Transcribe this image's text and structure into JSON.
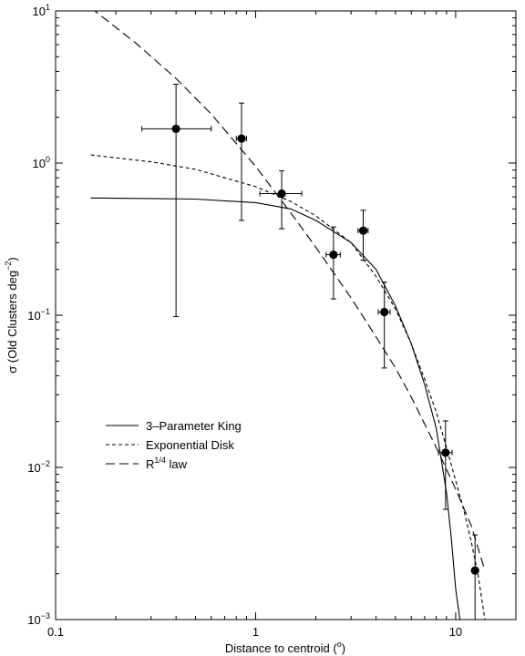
{
  "chart_data": {
    "type": "scatter",
    "xscale": "log",
    "yscale": "log",
    "xlim": [
      0.1,
      20
    ],
    "ylim": [
      0.001,
      10
    ],
    "xlabel_parts": [
      "Distance to  centroid  (",
      "o",
      ")"
    ],
    "ylabel_parts": [
      "σ (Old Clusters deg",
      "−2",
      ")"
    ],
    "x_ticks": [
      {
        "value": 0.1,
        "label": "0.1"
      },
      {
        "value": 1,
        "label": "1"
      },
      {
        "value": 10,
        "label": "10"
      }
    ],
    "y_ticks": [
      {
        "value": 0.001,
        "base": "10",
        "exp": "−3"
      },
      {
        "value": 0.01,
        "base": "10",
        "exp": "−2"
      },
      {
        "value": 0.1,
        "base": "10",
        "exp": "−1"
      },
      {
        "value": 1,
        "base": "10",
        "exp": "0"
      },
      {
        "value": 10,
        "base": "10",
        "exp": "1"
      }
    ],
    "grid": false,
    "legend_position": "lower-left",
    "points": [
      {
        "x": 0.4,
        "y": 1.68,
        "xlo": 0.27,
        "xhi": 0.6,
        "ylo": 0.098,
        "yhi": 3.3
      },
      {
        "x": 0.85,
        "y": 1.45,
        "xlo": 0.8,
        "xhi": 0.9,
        "ylo": 0.42,
        "yhi": 2.48
      },
      {
        "x": 1.35,
        "y": 0.63,
        "xlo": 1.05,
        "xhi": 1.7,
        "ylo": 0.37,
        "yhi": 0.89
      },
      {
        "x": 2.45,
        "y": 0.25,
        "xlo": 2.25,
        "xhi": 2.65,
        "ylo": 0.128,
        "yhi": 0.38
      },
      {
        "x": 3.45,
        "y": 0.36,
        "xlo": 3.25,
        "xhi": 3.65,
        "ylo": 0.23,
        "yhi": 0.49
      },
      {
        "x": 4.4,
        "y": 0.105,
        "xlo": 4.1,
        "xhi": 4.7,
        "ylo": 0.045,
        "yhi": 0.165
      },
      {
        "x": 8.9,
        "y": 0.0125,
        "xlo": 8.2,
        "xhi": 9.6,
        "ylo": 0.0053,
        "yhi": 0.0202
      },
      {
        "x": 12.5,
        "y": 0.0021,
        "xlo": 12.5,
        "xhi": 12.5,
        "ylo": 0.0009,
        "yhi": 0.0036
      }
    ],
    "series": [
      {
        "name": "3–Parameter King",
        "style": "solid",
        "x": [
          0.15,
          0.3,
          0.5,
          1.0,
          1.5,
          2.0,
          3.0,
          4.0,
          5.0,
          6.0,
          7.0,
          8.0,
          9.0,
          9.5,
          10.0,
          10.5
        ],
        "y": [
          0.59,
          0.585,
          0.58,
          0.55,
          0.5,
          0.42,
          0.3,
          0.2,
          0.115,
          0.065,
          0.035,
          0.018,
          0.0068,
          0.0035,
          0.0016,
          0.001
        ]
      },
      {
        "name": "Exponential Disk",
        "style": "dashed",
        "x": [
          0.15,
          0.3,
          0.5,
          1.0,
          1.5,
          2.0,
          3.0,
          4.0,
          5.0,
          6.0,
          7.0,
          8.0,
          9.0,
          10.0,
          11.0,
          12.0,
          13.0,
          14.0
        ],
        "y": [
          1.13,
          1.02,
          0.91,
          0.7,
          0.56,
          0.45,
          0.3,
          0.18,
          0.11,
          0.065,
          0.038,
          0.023,
          0.0135,
          0.0082,
          0.0052,
          0.0032,
          0.0019,
          0.001
        ]
      },
      {
        "name": "R^1/4 law",
        "label_base": "R",
        "label_sup": "1/4",
        "label_tail": " law",
        "style": "longdash",
        "x": [
          0.15,
          0.25,
          0.4,
          0.6,
          1.0,
          1.5,
          2.0,
          3.0,
          4.0,
          5.0,
          6.0,
          8.0,
          10.0,
          12.0,
          14.0
        ],
        "y": [
          10.5,
          6.2,
          3.6,
          2.1,
          0.95,
          0.47,
          0.28,
          0.13,
          0.072,
          0.045,
          0.029,
          0.0135,
          0.0072,
          0.0041,
          0.0021
        ]
      }
    ]
  }
}
